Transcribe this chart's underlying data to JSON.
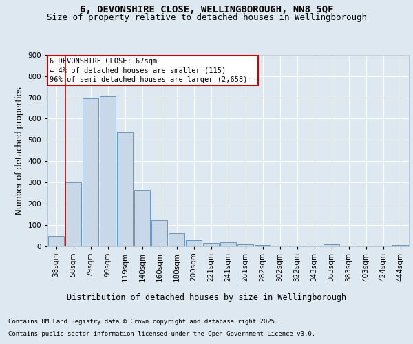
{
  "title_line1": "6, DEVONSHIRE CLOSE, WELLINGBOROUGH, NN8 5QF",
  "title_line2": "Size of property relative to detached houses in Wellingborough",
  "xlabel": "Distribution of detached houses by size in Wellingborough",
  "ylabel": "Number of detached properties",
  "footer_line1": "Contains HM Land Registry data © Crown copyright and database right 2025.",
  "footer_line2": "Contains public sector information licensed under the Open Government Licence v3.0.",
  "bar_labels": [
    "38sqm",
    "58sqm",
    "79sqm",
    "99sqm",
    "119sqm",
    "140sqm",
    "160sqm",
    "180sqm",
    "200sqm",
    "221sqm",
    "241sqm",
    "261sqm",
    "282sqm",
    "302sqm",
    "322sqm",
    "343sqm",
    "363sqm",
    "383sqm",
    "403sqm",
    "424sqm",
    "444sqm"
  ],
  "bar_values": [
    48,
    301,
    695,
    706,
    536,
    263,
    122,
    60,
    28,
    15,
    18,
    9,
    4,
    2,
    2,
    0,
    8,
    3,
    1,
    0,
    5
  ],
  "bar_color": "#c8d8e8",
  "bar_edge_color": "#5b8db8",
  "annotation_box_text": "6 DEVONSHIRE CLOSE: 67sqm\n← 4% of detached houses are smaller (115)\n96% of semi-detached houses are larger (2,658) →",
  "annotation_box_color": "#ffffff",
  "annotation_box_edge_color": "#cc0000",
  "vline_color": "#cc0000",
  "ylim": [
    0,
    900
  ],
  "yticks": [
    0,
    100,
    200,
    300,
    400,
    500,
    600,
    700,
    800,
    900
  ],
  "bg_color": "#dde8f0",
  "plot_bg_color": "#dde8f0",
  "grid_color": "#ffffff",
  "title_fontsize": 10,
  "subtitle_fontsize": 9,
  "axis_label_fontsize": 8.5,
  "tick_fontsize": 7.5,
  "footer_fontsize": 6.5,
  "annotation_fontsize": 7.5
}
